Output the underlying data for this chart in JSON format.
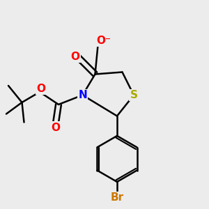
{
  "background_color": "#ececec",
  "bond_color": "#000000",
  "bond_width": 1.8,
  "atom_colors": {
    "O": "#ff0000",
    "N": "#0000ff",
    "S": "#aaaa00",
    "Br": "#cc7700",
    "C": "#000000"
  },
  "font_size": 11
}
